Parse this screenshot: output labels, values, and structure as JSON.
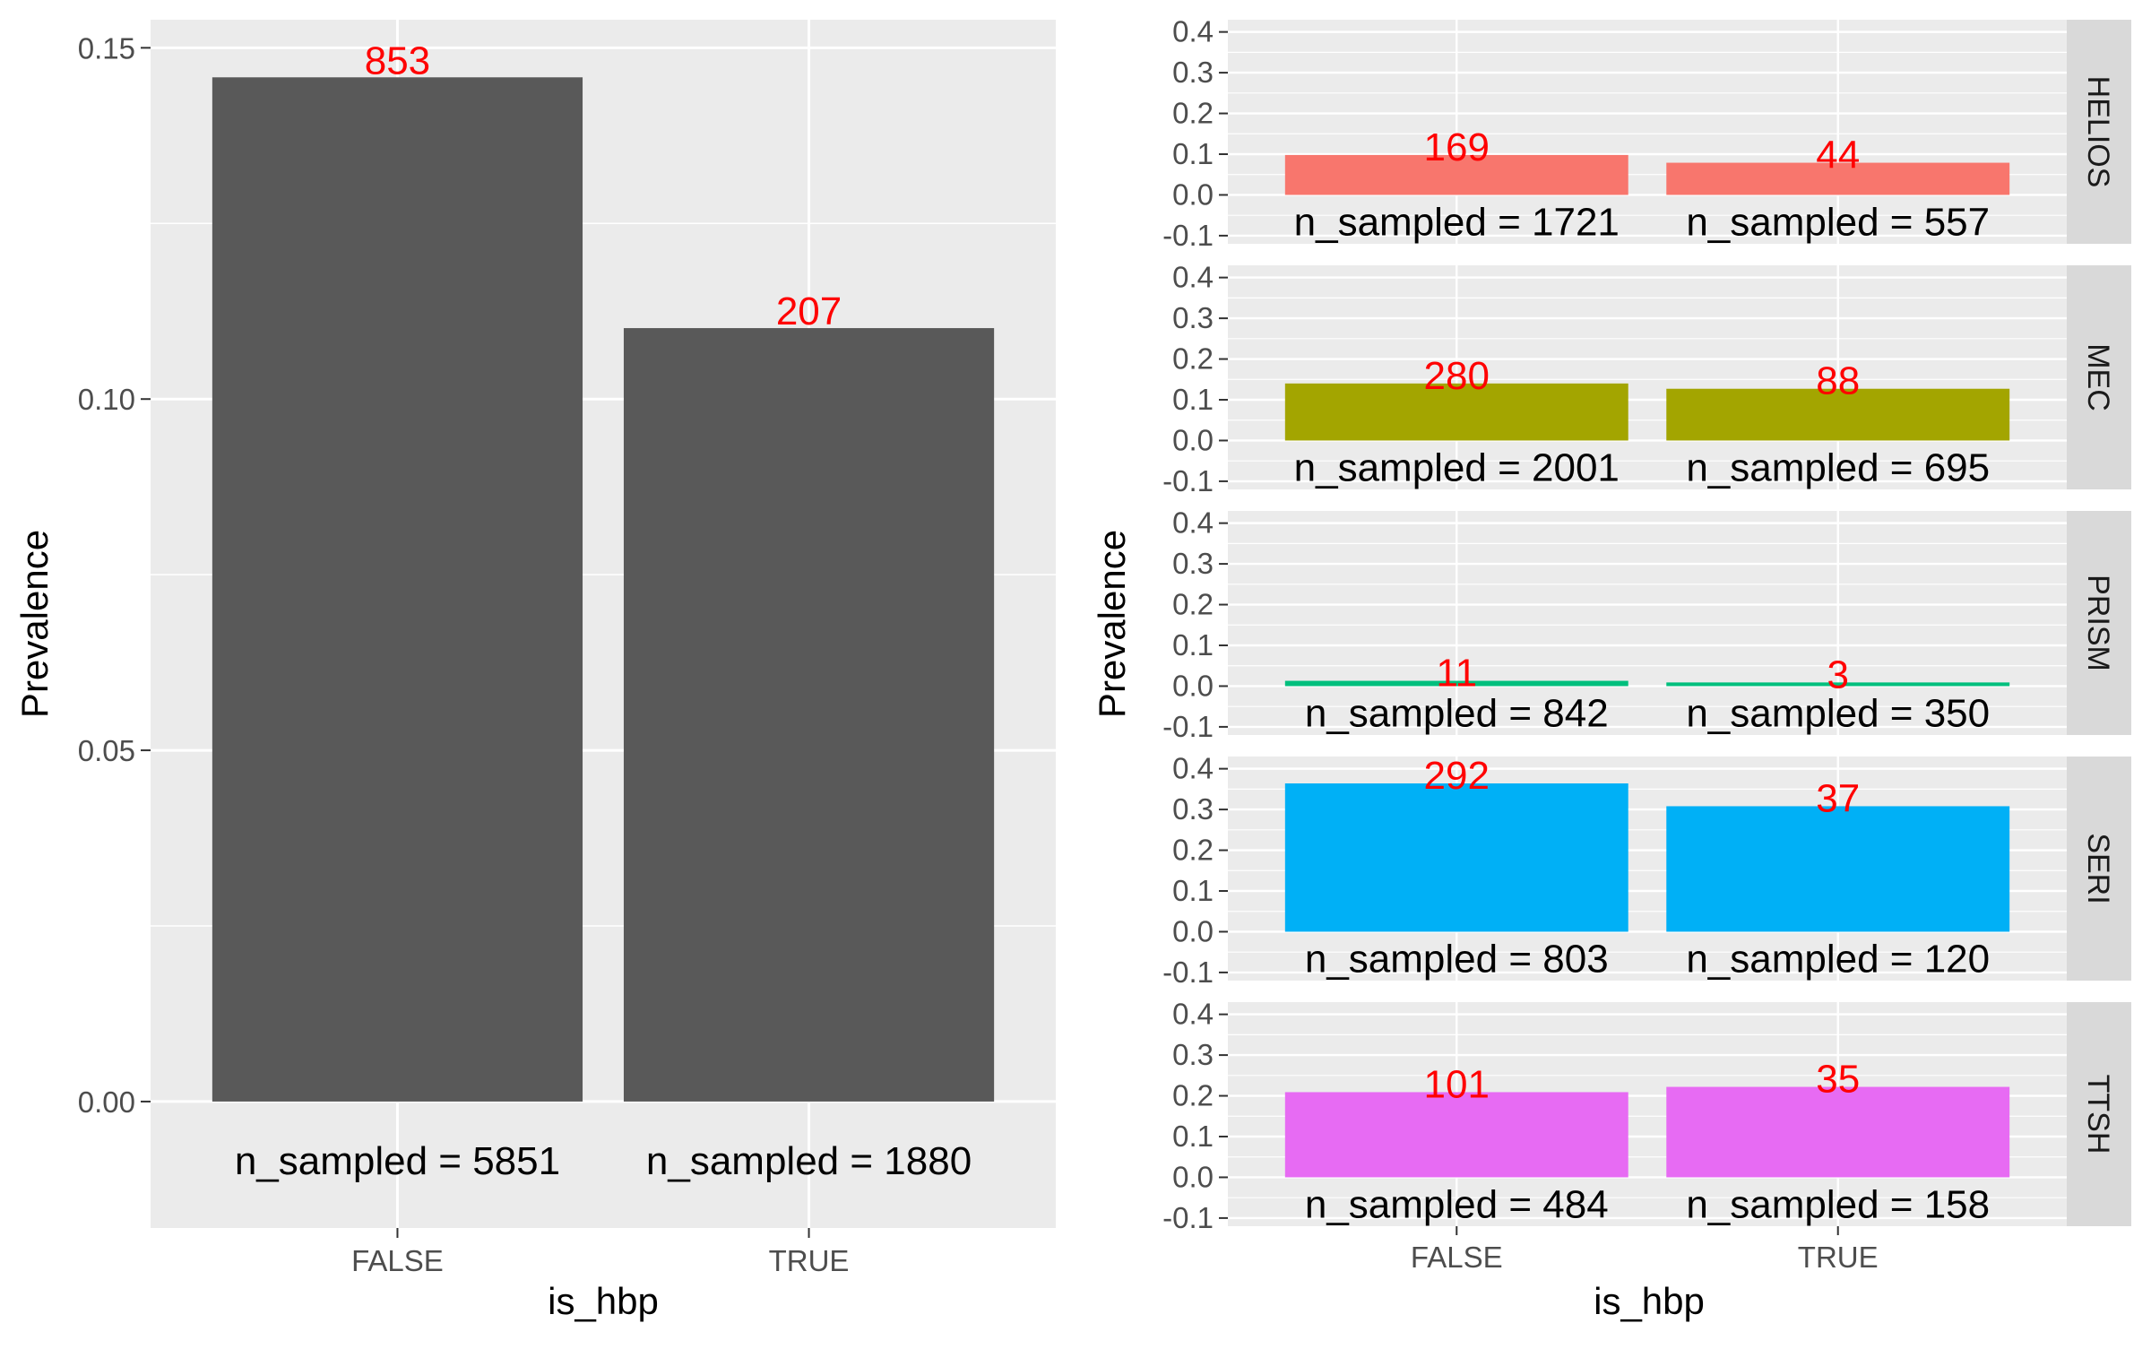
{
  "chart_data": [
    {
      "id": "overall",
      "type": "bar",
      "xlabel": "is_hbp",
      "ylabel": "Prevalence",
      "categories": [
        "FALSE",
        "TRUE"
      ],
      "values": [
        0.1458,
        0.1101
      ],
      "value_labels": [
        "853",
        "207"
      ],
      "n_labels": [
        "n_sampled = 5851",
        "n_sampled = 1880"
      ],
      "ylim": [
        -0.018,
        0.154
      ],
      "yticks": [
        0.0,
        0.05,
        0.1,
        0.15
      ],
      "ytick_labels": [
        "0.00",
        "0.05",
        "0.10",
        "0.15"
      ],
      "bar_color": "#595959",
      "value_label_color": "#ff0000",
      "grid": true
    },
    {
      "id": "faceted",
      "type": "bar",
      "xlabel": "is_hbp",
      "ylabel": "Prevalence",
      "categories": [
        "FALSE",
        "TRUE"
      ],
      "ylim": [
        -0.12,
        0.43
      ],
      "yticks": [
        -0.1,
        0.0,
        0.1,
        0.2,
        0.3,
        0.4
      ],
      "ytick_labels": [
        "-0.1",
        "0.0",
        "0.1",
        "0.2",
        "0.3",
        "0.4"
      ],
      "value_label_color": "#ff0000",
      "grid": true,
      "facets": [
        {
          "name": "HELIOS",
          "color": "#F8766D",
          "values": [
            0.098,
            0.079
          ],
          "value_labels": [
            "169",
            "44"
          ],
          "n_labels": [
            "n_sampled = 1721",
            "n_sampled = 557"
          ]
        },
        {
          "name": "MEC",
          "color": "#A3A500",
          "values": [
            0.14,
            0.127
          ],
          "value_labels": [
            "280",
            "88"
          ],
          "n_labels": [
            "n_sampled = 2001",
            "n_sampled = 695"
          ]
        },
        {
          "name": "PRISM",
          "color": "#00BF7D",
          "values": [
            0.013,
            0.009
          ],
          "value_labels": [
            "11",
            "3"
          ],
          "n_labels": [
            "n_sampled = 842",
            "n_sampled = 350"
          ]
        },
        {
          "name": "SERI",
          "color": "#00B0F6",
          "values": [
            0.364,
            0.308
          ],
          "value_labels": [
            "292",
            "37"
          ],
          "n_labels": [
            "n_sampled = 803",
            "n_sampled = 120"
          ]
        },
        {
          "name": "TTSH",
          "color": "#E76BF3",
          "values": [
            0.209,
            0.222
          ],
          "value_labels": [
            "101",
            "35"
          ],
          "n_labels": [
            "n_sampled = 484",
            "n_sampled = 158"
          ]
        }
      ]
    }
  ]
}
